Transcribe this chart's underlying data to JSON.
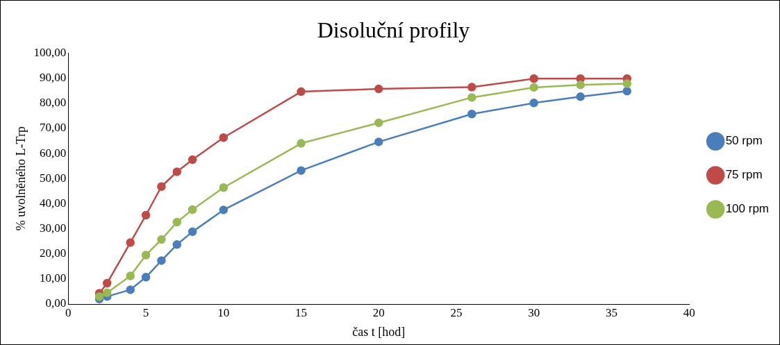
{
  "chart_data": {
    "type": "line",
    "title": "Disoluční profily",
    "xlabel": "čas t [hod]",
    "ylabel": "% uvolněného L-Trp",
    "x": [
      2,
      2.5,
      4,
      5,
      6,
      7,
      8,
      10,
      15,
      20,
      26,
      30,
      33,
      36
    ],
    "series": [
      {
        "name": "50 rpm",
        "color": "#4a7ebb",
        "values": [
          2,
          3,
          5.7,
          10.7,
          17.3,
          23.7,
          28.8,
          37.5,
          53.2,
          64.6,
          75.7,
          80.1,
          82.6,
          84.8
        ]
      },
      {
        "name": "75 rpm",
        "color": "#be4b48",
        "values": [
          4.3,
          8.3,
          24.5,
          35.4,
          46.8,
          52.7,
          57.5,
          66.3,
          84.6,
          85.7,
          86.4,
          89.8,
          89.8,
          89.8
        ]
      },
      {
        "name": "100 rpm",
        "color": "#98b954",
        "values": [
          3,
          4.5,
          11.2,
          19.5,
          25.7,
          32.6,
          37.6,
          46.4,
          64,
          72.2,
          82.3,
          86.3,
          87.3,
          87.8
        ]
      }
    ],
    "xlim": [
      0,
      40
    ],
    "xticks": [
      0,
      5,
      10,
      15,
      20,
      25,
      30,
      35,
      40
    ],
    "ylim": [
      0,
      100
    ],
    "yticks": [
      {
        "value": 0,
        "label": "0,00"
      },
      {
        "value": 10,
        "label": "10,00"
      },
      {
        "value": 20,
        "label": "20,00"
      },
      {
        "value": 30,
        "label": "30,00"
      },
      {
        "value": 40,
        "label": "40,00"
      },
      {
        "value": 50,
        "label": "50,00"
      },
      {
        "value": 60,
        "label": "60,00"
      },
      {
        "value": 70,
        "label": "70,00"
      },
      {
        "value": 80,
        "label": "80,00"
      },
      {
        "value": 90,
        "label": "90,00"
      },
      {
        "value": 100,
        "label": "100,00"
      }
    ],
    "grid": false,
    "legend": "right",
    "marker": "circle",
    "line_style": "solid"
  }
}
